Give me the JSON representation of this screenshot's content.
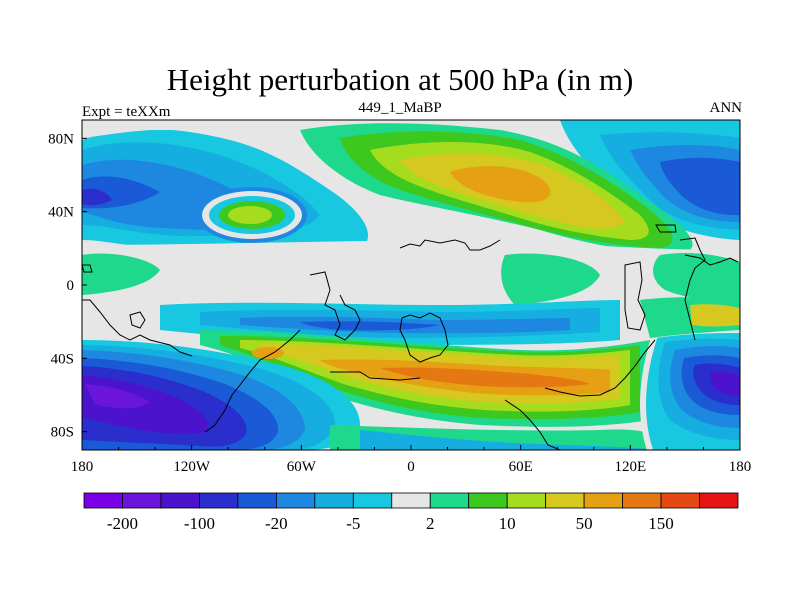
{
  "title": "Height perturbation at 500 hPa (in m)",
  "left_label": "Expt = teXXm",
  "center_label": "449_1_MaBP",
  "right_label": "ANN",
  "map": {
    "projection": "cylindrical-equidistant",
    "lon_range": [
      -180,
      180
    ],
    "lat_range": [
      -90,
      90
    ],
    "x_ticks": [
      {
        "value": -180,
        "label": "180"
      },
      {
        "value": -120,
        "label": "120W"
      },
      {
        "value": -60,
        "label": "60W"
      },
      {
        "value": 0,
        "label": "0"
      },
      {
        "value": 60,
        "label": "60E"
      },
      {
        "value": 120,
        "label": "120E"
      },
      {
        "value": 180,
        "label": "180"
      }
    ],
    "y_ticks": [
      {
        "value": 80,
        "label": "80N"
      },
      {
        "value": 40,
        "label": "40N"
      },
      {
        "value": 0,
        "label": "0"
      },
      {
        "value": -40,
        "label": "40S"
      },
      {
        "value": -80,
        "label": "80S"
      }
    ],
    "coastlines": true
  },
  "colorbar": {
    "colors": [
      "#7a00e6",
      "#6a14dc",
      "#4b14cc",
      "#2a2ecc",
      "#1a5ad6",
      "#1e88e0",
      "#16aee0",
      "#18c8e0",
      "#e6e6e6",
      "#1ed88c",
      "#3cc81e",
      "#a6dc1e",
      "#d6c81e",
      "#e6a014",
      "#e67814",
      "#e64814",
      "#e61414"
    ],
    "labels": [
      {
        "after_box": 1,
        "text": "-200"
      },
      {
        "after_box": 3,
        "text": "-100"
      },
      {
        "after_box": 5,
        "text": "-20"
      },
      {
        "after_box": 7,
        "text": "-5"
      },
      {
        "after_box": 9,
        "text": "2"
      },
      {
        "after_box": 11,
        "text": "10"
      },
      {
        "after_box": 13,
        "text": "50"
      },
      {
        "after_box": 15,
        "text": "150"
      }
    ]
  }
}
